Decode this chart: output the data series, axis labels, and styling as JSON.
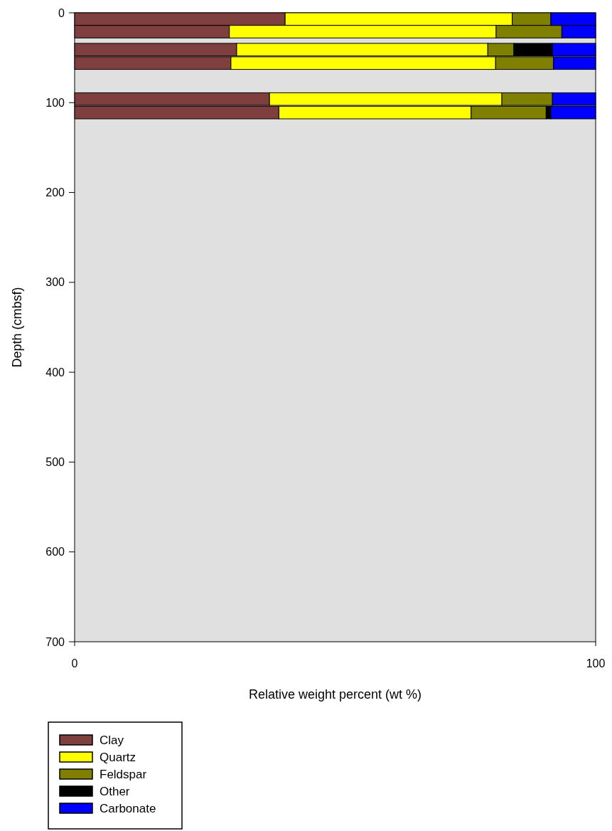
{
  "chart_data": {
    "type": "bar",
    "orientation": "horizontal",
    "stacked": true,
    "xlabel": "Relative weight percent (wt %)",
    "ylabel": "Depth (cmbsf)",
    "x": [
      7,
      21,
      41,
      56,
      96,
      111
    ],
    "series": [
      {
        "name": "Clay",
        "color": "#7f3f3f",
        "values": [
          40.4,
          29.7,
          31.1,
          30.0,
          37.4,
          39.2
        ]
      },
      {
        "name": "Quartz",
        "color": "#ffff00",
        "values": [
          43.6,
          51.2,
          48.2,
          50.8,
          44.6,
          36.9
        ]
      },
      {
        "name": "Feldspar",
        "color": "#808000",
        "values": [
          7.4,
          12.6,
          5.0,
          11.1,
          9.7,
          14.4
        ]
      },
      {
        "name": "Other",
        "color": "#000000",
        "values": [
          0,
          0,
          7.4,
          0,
          0,
          0.9
        ]
      },
      {
        "name": "Carbonate",
        "color": "#0000ff",
        "values": [
          8.6,
          6.5,
          8.3,
          8.1,
          8.3,
          8.6
        ]
      }
    ],
    "xlim": [
      0,
      100
    ],
    "xticks": [
      0,
      100
    ],
    "ylim": [
      700,
      0
    ],
    "yticks": [
      0,
      100,
      200,
      300,
      400,
      500,
      600,
      700
    ],
    "grid": false,
    "legend": "bottom left"
  }
}
